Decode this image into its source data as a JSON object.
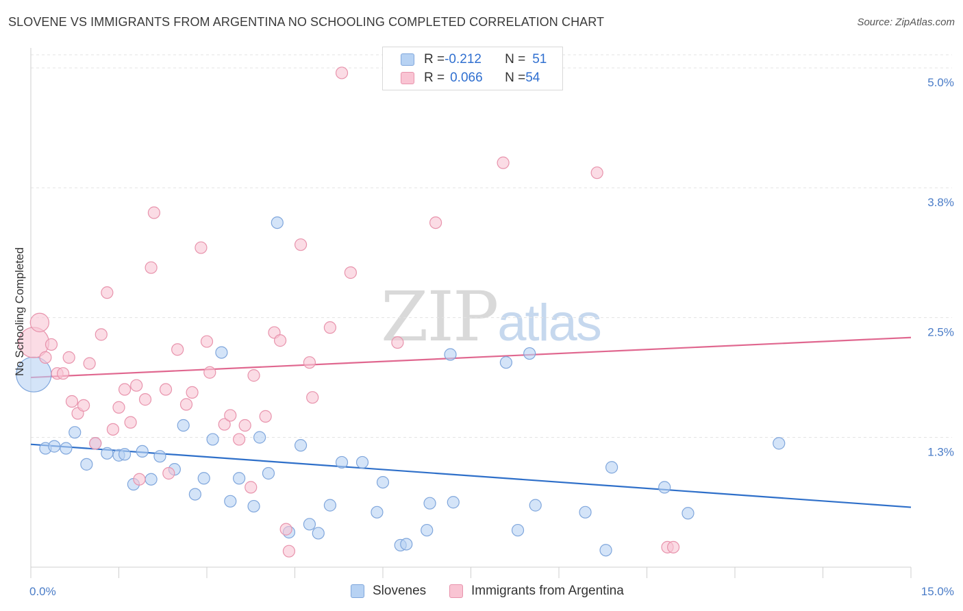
{
  "header": {
    "title": "SLOVENE VS IMMIGRANTS FROM ARGENTINA NO SCHOOLING COMPLETED CORRELATION CHART",
    "source": "Source: ZipAtlas.com"
  },
  "watermark": {
    "zip": "ZIP",
    "atlas": "atlas"
  },
  "legend": {
    "rows": [
      {
        "r_label": "R = ",
        "r_value": "-0.212",
        "n_label": "N = ",
        "n_value": "51"
      },
      {
        "r_label": "R = ",
        "r_value": "0.066",
        "n_label": "N = ",
        "n_value": "54"
      }
    ]
  },
  "colors": {
    "series_0_fill": "#b7d2f3",
    "series_0_stroke": "#7fa6dc",
    "series_0_line": "#2e6fc9",
    "series_1_fill": "#f9c4d3",
    "series_1_stroke": "#e893ac",
    "series_1_line": "#e0678f"
  },
  "chart_data": {
    "type": "scatter",
    "title": "SLOVENE VS IMMIGRANTS FROM ARGENTINA NO SCHOOLING COMPLETED CORRELATION CHART",
    "xlabel": "",
    "ylabel": "No Schooling Completed",
    "xlim": [
      0,
      15
    ],
    "ylim": [
      0,
      5.2
    ],
    "x_tick_labels": [
      "0.0%",
      "15.0%"
    ],
    "y_ticks": [
      1.3,
      2.5,
      3.8,
      5.0
    ],
    "y_tick_labels": [
      "1.3%",
      "2.5%",
      "3.8%",
      "5.0%"
    ],
    "grid": true,
    "legend_position": "top-center",
    "series": [
      {
        "name": "Slovenes",
        "trend": {
          "x": [
            0,
            15
          ],
          "y": [
            1.23,
            0.6
          ]
        },
        "points": [
          {
            "x": 0.05,
            "y": 1.93,
            "s": 3
          },
          {
            "x": 0.25,
            "y": 1.19
          },
          {
            "x": 0.4,
            "y": 1.21
          },
          {
            "x": 0.6,
            "y": 1.19
          },
          {
            "x": 0.75,
            "y": 1.35
          },
          {
            "x": 0.95,
            "y": 1.03
          },
          {
            "x": 1.1,
            "y": 1.24
          },
          {
            "x": 1.3,
            "y": 1.14
          },
          {
            "x": 1.5,
            "y": 1.12
          },
          {
            "x": 1.6,
            "y": 1.13
          },
          {
            "x": 1.75,
            "y": 0.83
          },
          {
            "x": 1.9,
            "y": 1.16
          },
          {
            "x": 2.05,
            "y": 0.88
          },
          {
            "x": 2.2,
            "y": 1.11
          },
          {
            "x": 2.45,
            "y": 0.98
          },
          {
            "x": 2.6,
            "y": 1.42
          },
          {
            "x": 2.8,
            "y": 0.73
          },
          {
            "x": 2.95,
            "y": 0.89
          },
          {
            "x": 3.1,
            "y": 1.28
          },
          {
            "x": 3.25,
            "y": 2.15
          },
          {
            "x": 3.4,
            "y": 0.66
          },
          {
            "x": 3.55,
            "y": 0.89
          },
          {
            "x": 3.8,
            "y": 0.61
          },
          {
            "x": 3.9,
            "y": 1.3
          },
          {
            "x": 4.05,
            "y": 0.94
          },
          {
            "x": 4.2,
            "y": 3.45
          },
          {
            "x": 4.4,
            "y": 0.35
          },
          {
            "x": 4.6,
            "y": 1.22
          },
          {
            "x": 4.75,
            "y": 0.43
          },
          {
            "x": 4.9,
            "y": 0.34
          },
          {
            "x": 5.1,
            "y": 0.62
          },
          {
            "x": 5.3,
            "y": 1.05
          },
          {
            "x": 5.65,
            "y": 1.05
          },
          {
            "x": 5.9,
            "y": 0.55
          },
          {
            "x": 6.0,
            "y": 0.85
          },
          {
            "x": 6.3,
            "y": 0.22
          },
          {
            "x": 6.4,
            "y": 0.23
          },
          {
            "x": 6.75,
            "y": 0.37
          },
          {
            "x": 6.8,
            "y": 0.64
          },
          {
            "x": 7.15,
            "y": 2.13
          },
          {
            "x": 7.2,
            "y": 0.65
          },
          {
            "x": 8.1,
            "y": 2.05
          },
          {
            "x": 8.3,
            "y": 0.37
          },
          {
            "x": 8.5,
            "y": 2.14
          },
          {
            "x": 8.6,
            "y": 0.62
          },
          {
            "x": 9.45,
            "y": 0.55
          },
          {
            "x": 9.9,
            "y": 1.0
          },
          {
            "x": 9.8,
            "y": 0.17
          },
          {
            "x": 10.8,
            "y": 0.8
          },
          {
            "x": 11.2,
            "y": 0.54
          },
          {
            "x": 12.75,
            "y": 1.24
          }
        ]
      },
      {
        "name": "Immigrants from Argentina",
        "trend": {
          "x": [
            0,
            15
          ],
          "y": [
            1.9,
            2.3
          ]
        },
        "points": [
          {
            "x": 0.05,
            "y": 2.25,
            "s": 2.6
          },
          {
            "x": 0.15,
            "y": 2.45,
            "s": 1.6
          },
          {
            "x": 0.25,
            "y": 2.1
          },
          {
            "x": 0.35,
            "y": 2.23
          },
          {
            "x": 0.45,
            "y": 1.94
          },
          {
            "x": 0.55,
            "y": 1.94
          },
          {
            "x": 0.65,
            "y": 2.1
          },
          {
            "x": 0.7,
            "y": 1.66
          },
          {
            "x": 0.8,
            "y": 1.54
          },
          {
            "x": 0.9,
            "y": 1.62
          },
          {
            "x": 1.0,
            "y": 2.04
          },
          {
            "x": 1.1,
            "y": 1.24
          },
          {
            "x": 1.2,
            "y": 2.33
          },
          {
            "x": 1.3,
            "y": 2.75
          },
          {
            "x": 1.4,
            "y": 1.38
          },
          {
            "x": 1.5,
            "y": 1.6
          },
          {
            "x": 1.6,
            "y": 1.78
          },
          {
            "x": 1.7,
            "y": 1.45
          },
          {
            "x": 1.8,
            "y": 1.82
          },
          {
            "x": 1.85,
            "y": 0.88
          },
          {
            "x": 1.95,
            "y": 1.68
          },
          {
            "x": 2.05,
            "y": 3.0
          },
          {
            "x": 2.1,
            "y": 3.55
          },
          {
            "x": 2.3,
            "y": 1.78
          },
          {
            "x": 2.35,
            "y": 0.94
          },
          {
            "x": 2.5,
            "y": 2.18
          },
          {
            "x": 2.65,
            "y": 1.63
          },
          {
            "x": 2.75,
            "y": 1.75
          },
          {
            "x": 2.9,
            "y": 3.2
          },
          {
            "x": 3.0,
            "y": 2.26
          },
          {
            "x": 3.05,
            "y": 1.95
          },
          {
            "x": 3.3,
            "y": 1.43
          },
          {
            "x": 3.4,
            "y": 1.52
          },
          {
            "x": 3.55,
            "y": 1.28
          },
          {
            "x": 3.65,
            "y": 1.42
          },
          {
            "x": 3.75,
            "y": 0.8
          },
          {
            "x": 3.8,
            "y": 1.92
          },
          {
            "x": 4.0,
            "y": 1.51
          },
          {
            "x": 4.15,
            "y": 2.35
          },
          {
            "x": 4.25,
            "y": 2.27
          },
          {
            "x": 4.35,
            "y": 0.38
          },
          {
            "x": 4.4,
            "y": 0.16
          },
          {
            "x": 4.6,
            "y": 3.23
          },
          {
            "x": 4.75,
            "y": 2.05
          },
          {
            "x": 4.8,
            "y": 1.7
          },
          {
            "x": 5.1,
            "y": 2.4
          },
          {
            "x": 5.3,
            "y": 4.95
          },
          {
            "x": 5.45,
            "y": 2.95
          },
          {
            "x": 6.25,
            "y": 2.25
          },
          {
            "x": 6.9,
            "y": 3.45
          },
          {
            "x": 8.05,
            "y": 4.05
          },
          {
            "x": 9.65,
            "y": 3.95
          },
          {
            "x": 10.85,
            "y": 0.2
          },
          {
            "x": 10.95,
            "y": 0.2
          }
        ]
      }
    ]
  }
}
